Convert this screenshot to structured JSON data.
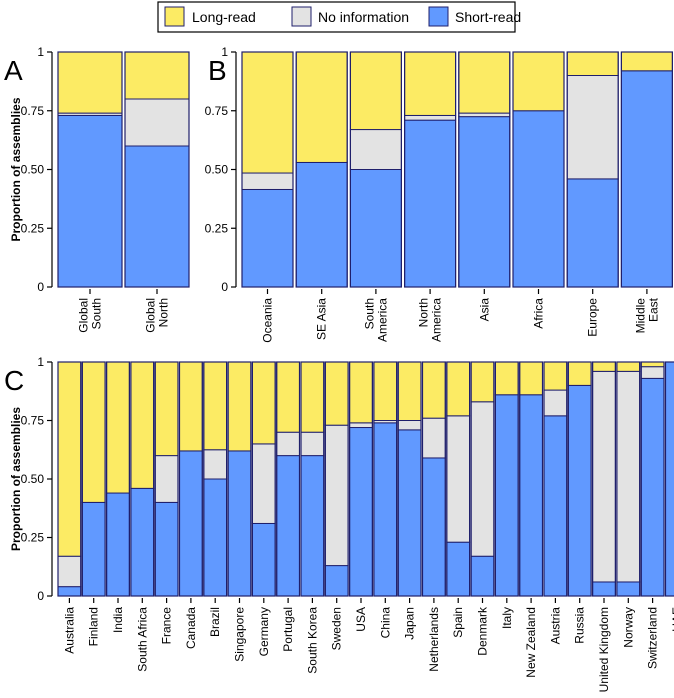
{
  "colors": {
    "long_read": "#FCEB64",
    "no_information": "#E3E3E3",
    "short_read": "#6199FF",
    "outline": "#1f1f6b"
  },
  "legend": {
    "items": [
      {
        "key": "long_read",
        "label": "Long-read"
      },
      {
        "key": "no_information",
        "label": "No information"
      },
      {
        "key": "short_read",
        "label": "Short-read"
      }
    ]
  },
  "chart_data": [
    {
      "panel": "A",
      "type": "bar",
      "stacked": true,
      "ylabel": "Proportion of assemblies",
      "ylim": [
        0,
        1
      ],
      "yticks": [
        "0",
        "0.25",
        "0.50",
        "0.75",
        "1"
      ],
      "categories": [
        "Global\nSouth",
        "Global\nNorth"
      ],
      "series": [
        {
          "name": "Short-read",
          "values": [
            0.73,
            0.6
          ]
        },
        {
          "name": "No information",
          "values": [
            0.01,
            0.2
          ]
        },
        {
          "name": "Long-read",
          "values": [
            0.26,
            0.2
          ]
        }
      ]
    },
    {
      "panel": "B",
      "type": "bar",
      "stacked": true,
      "ylim": [
        0,
        1
      ],
      "categories": [
        "Oceania",
        "SE Asia",
        "South\nAmerica",
        "North\nAmerica",
        "Asia",
        "Africa",
        "Europe",
        "Middle\nEast"
      ],
      "series": [
        {
          "name": "Short-read",
          "values": [
            0.415,
            0.53,
            0.5,
            0.71,
            0.725,
            0.75,
            0.46,
            0.92
          ]
        },
        {
          "name": "No information",
          "values": [
            0.07,
            0.0,
            0.17,
            0.02,
            0.015,
            0.0,
            0.44,
            0.0
          ]
        },
        {
          "name": "Long-read",
          "values": [
            0.515,
            0.47,
            0.33,
            0.27,
            0.26,
            0.25,
            0.1,
            0.08
          ]
        }
      ]
    },
    {
      "panel": "C",
      "type": "bar",
      "stacked": true,
      "ylabel": "Proportion of assemblies",
      "ylim": [
        0,
        1
      ],
      "yticks": [
        "0",
        "0.25",
        "0.50",
        "0.75",
        "1"
      ],
      "categories": [
        "Australia",
        "Finland",
        "India",
        "South Africa",
        "France",
        "Canada",
        "Brazil",
        "Singapore",
        "Germany",
        "Portugal",
        "South Korea",
        "Sweden",
        "USA",
        "China",
        "Japan",
        "Netherlands",
        "Spain",
        "Denmark",
        "Italy",
        "New Zealand",
        "Austria",
        "Russia",
        "United Kingdom",
        "Norway",
        "Switzerland",
        "UAE"
      ],
      "series": [
        {
          "name": "Short-read",
          "values": [
            0.04,
            0.4,
            0.44,
            0.46,
            0.4,
            0.62,
            0.5,
            0.62,
            0.31,
            0.6,
            0.6,
            0.13,
            0.72,
            0.74,
            0.71,
            0.59,
            0.23,
            0.17,
            0.86,
            0.86,
            0.77,
            0.9,
            0.06,
            0.06,
            0.93,
            1.0
          ]
        },
        {
          "name": "No information",
          "values": [
            0.13,
            0.0,
            0.0,
            0.0,
            0.2,
            0.0,
            0.125,
            0.0,
            0.34,
            0.1,
            0.1,
            0.6,
            0.02,
            0.01,
            0.04,
            0.17,
            0.54,
            0.66,
            0.0,
            0.0,
            0.11,
            0.0,
            0.9,
            0.9,
            0.05,
            0.0
          ]
        },
        {
          "name": "Long-read",
          "values": [
            0.83,
            0.6,
            0.56,
            0.54,
            0.4,
            0.38,
            0.375,
            0.38,
            0.35,
            0.3,
            0.3,
            0.27,
            0.26,
            0.25,
            0.25,
            0.24,
            0.23,
            0.17,
            0.14,
            0.14,
            0.12,
            0.1,
            0.04,
            0.04,
            0.02,
            0.0
          ]
        }
      ]
    }
  ]
}
